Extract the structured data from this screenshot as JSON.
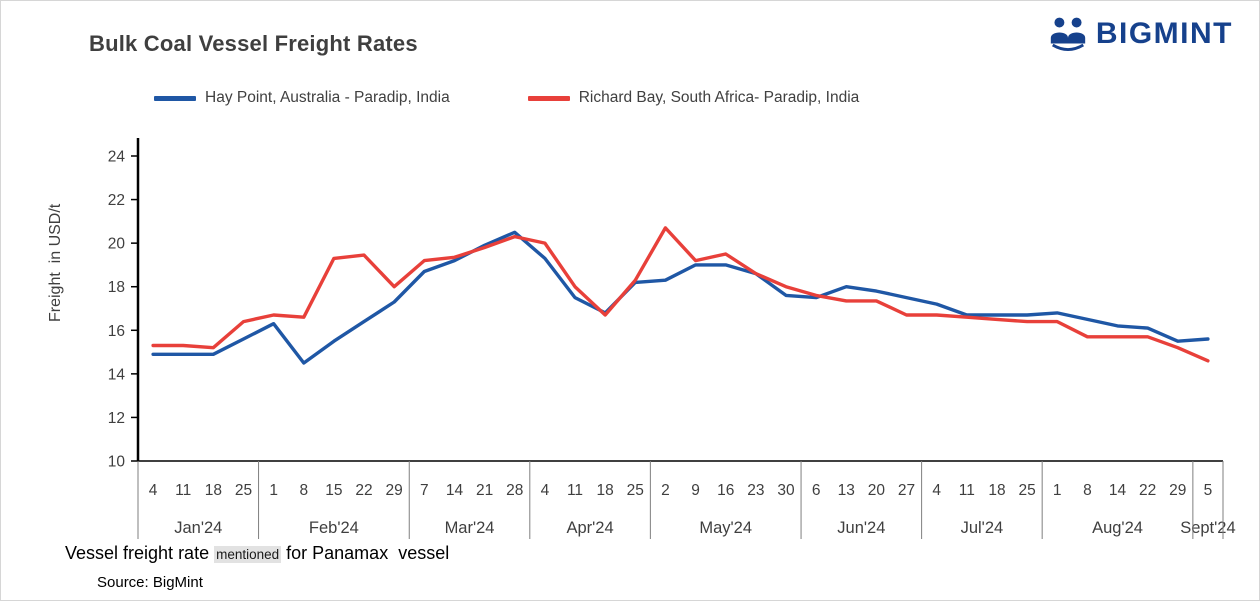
{
  "title": "Bulk Coal Vessel Freight Rates",
  "logo": {
    "text": "BIGMINT",
    "color": "#16418c"
  },
  "footnote": {
    "lead": "Vessel freight rate ",
    "highlight": "mentioned",
    "tail": " for Panamax  vessel"
  },
  "source": "Source: BigMint",
  "chart_data": {
    "type": "line",
    "title": "Bulk Coal Vessel Freight Rates",
    "xlabel": "",
    "ylabel": "Freight  in USD/t",
    "ylim": [
      10,
      24
    ],
    "ytick_step": 2,
    "grid": false,
    "legend_position": "top",
    "months": [
      {
        "label": "Jan'24",
        "weeks": [
          "4",
          "11",
          "18",
          "25"
        ]
      },
      {
        "label": "Feb'24",
        "weeks": [
          "1",
          "8",
          "15",
          "22",
          "29"
        ]
      },
      {
        "label": "Mar'24",
        "weeks": [
          "7",
          "14",
          "21",
          "28"
        ]
      },
      {
        "label": "Apr'24",
        "weeks": [
          "4",
          "11",
          "18",
          "25"
        ]
      },
      {
        "label": "May'24",
        "weeks": [
          "2",
          "9",
          "16",
          "23",
          "30"
        ]
      },
      {
        "label": "Jun'24",
        "weeks": [
          "6",
          "13",
          "20",
          "27"
        ]
      },
      {
        "label": "Jul'24",
        "weeks": [
          "4",
          "11",
          "18",
          "25"
        ]
      },
      {
        "label": "Aug'24",
        "weeks": [
          "1",
          "8",
          "14",
          "22",
          "29"
        ]
      },
      {
        "label": "Sept'24",
        "weeks": [
          "5"
        ]
      }
    ],
    "series": [
      {
        "name": "Hay Point, Australia - Paradip, India",
        "color": "#1f57a5",
        "values": [
          14.9,
          14.9,
          14.9,
          15.6,
          16.3,
          14.5,
          15.5,
          16.4,
          17.3,
          18.7,
          19.2,
          19.9,
          20.5,
          19.3,
          17.5,
          16.8,
          18.2,
          18.3,
          19.0,
          19.0,
          18.6,
          17.6,
          17.5,
          18.0,
          17.8,
          17.5,
          17.2,
          16.7,
          16.7,
          16.7,
          16.8,
          16.5,
          16.2,
          16.1,
          15.5,
          15.6
        ]
      },
      {
        "name": "Richard Bay, South Africa- Paradip, India",
        "color": "#e8403a",
        "values": [
          15.3,
          15.3,
          15.2,
          16.4,
          16.7,
          16.6,
          19.3,
          19.45,
          18.0,
          19.2,
          19.35,
          19.8,
          20.3,
          20.0,
          18.0,
          16.7,
          18.3,
          20.7,
          19.2,
          19.5,
          18.6,
          18.0,
          17.6,
          17.35,
          17.35,
          16.7,
          16.7,
          16.6,
          16.5,
          16.4,
          16.4,
          15.7,
          15.7,
          15.7,
          15.2,
          14.6
        ]
      }
    ]
  }
}
